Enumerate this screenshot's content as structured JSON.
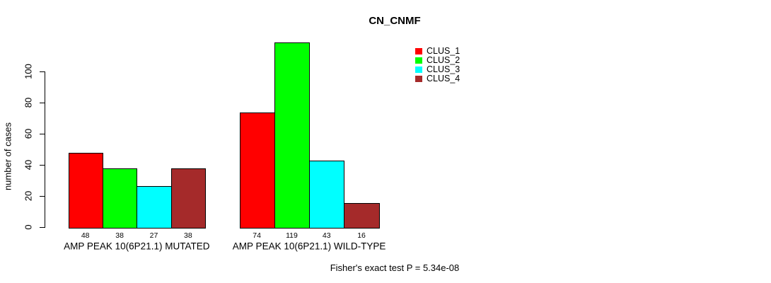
{
  "chart_data": {
    "type": "bar",
    "title": "CN_CNMF",
    "ylabel": "number of cases",
    "xlabel": "",
    "categories": [
      "AMP PEAK 10(6P21.1) MUTATED",
      "AMP PEAK 10(6P21.1) WILD-TYPE"
    ],
    "series": [
      {
        "name": "CLUS_1",
        "color": "#ff0000",
        "values": [
          48,
          74
        ]
      },
      {
        "name": "CLUS_2",
        "color": "#00ff00",
        "values": [
          38,
          119
        ]
      },
      {
        "name": "CLUS_3",
        "color": "#00ffff",
        "values": [
          27,
          43
        ]
      },
      {
        "name": "CLUS_4",
        "color": "#a52a2a",
        "values": [
          38,
          16
        ]
      }
    ],
    "bar_value_labels": [
      [
        48,
        38,
        27,
        38
      ],
      [
        74,
        119,
        43,
        16
      ]
    ],
    "yticks": [
      0,
      20,
      40,
      60,
      80,
      100
    ],
    "ylim": [
      0,
      119
    ],
    "grid": false,
    "legend_position": "top-right",
    "annotation": "Fisher's exact test P = 5.34e-08"
  },
  "colors": {
    "background": "#ffffff",
    "axis": "#000000",
    "bar_border": "#000000",
    "text": "#000000"
  }
}
